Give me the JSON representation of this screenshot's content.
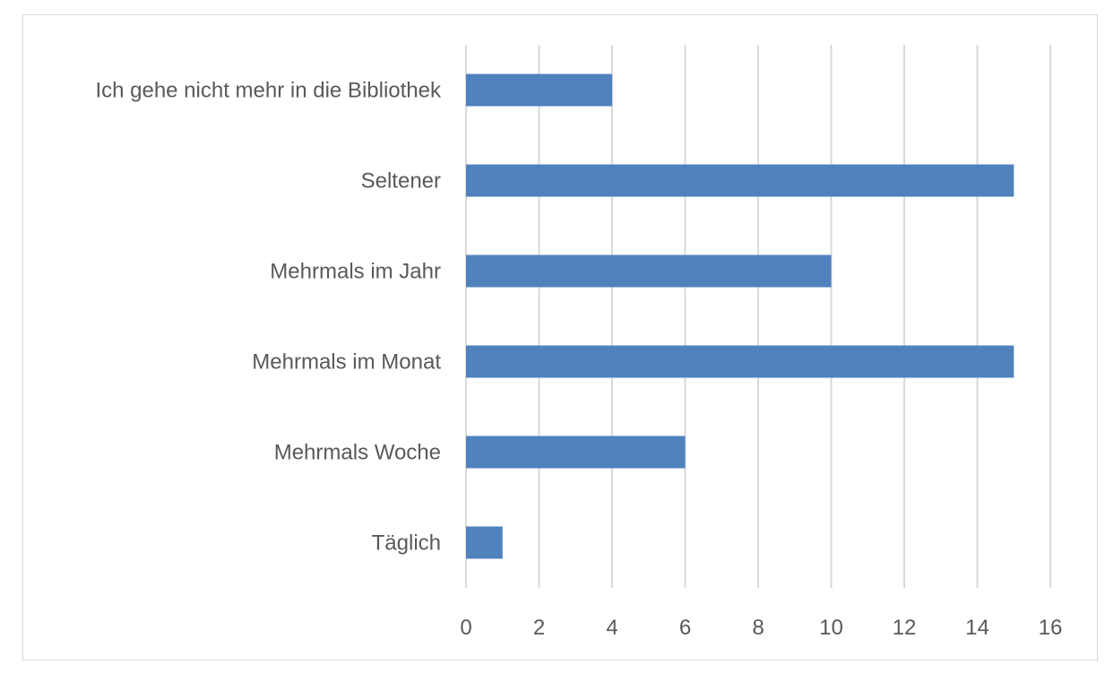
{
  "chart_data": {
    "type": "bar",
    "orientation": "horizontal",
    "title": "",
    "xlabel": "",
    "ylabel": "",
    "categories": [
      "Täglich",
      "Mehrmals Woche",
      "Mehrmals im Monat",
      "Mehrmals im Jahr",
      "Seltener",
      "Ich gehe nicht mehr in die Bibliothek"
    ],
    "values": [
      1,
      6,
      15,
      10,
      15,
      4
    ],
    "xlim": [
      0,
      16
    ],
    "xticks": [
      "0",
      "2",
      "4",
      "6",
      "8",
      "10",
      "12",
      "14",
      "16"
    ],
    "grid": true,
    "legend": "none",
    "color": "#4F81BD"
  }
}
